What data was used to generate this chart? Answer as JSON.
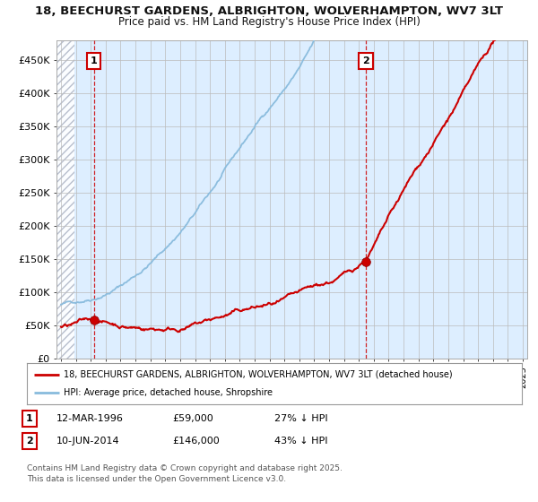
{
  "title_line1": "18, BEECHURST GARDENS, ALBRIGHTON, WOLVERHAMPTON, WV7 3LT",
  "title_line2": "Price paid vs. HM Land Registry's House Price Index (HPI)",
  "bg_color": "#ffffff",
  "plot_bg_color": "#ddeeff",
  "grid_color": "#bbbbbb",
  "red_line_color": "#cc0000",
  "blue_line_color": "#88bbdd",
  "marker_color": "#cc0000",
  "vline1_x": 1996.2,
  "vline2_x": 2014.45,
  "sale1_price": 59000,
  "sale2_price": 146000,
  "ylim": [
    0,
    480000
  ],
  "xlim": [
    1993.7,
    2025.3
  ],
  "yticks": [
    0,
    50000,
    100000,
    150000,
    200000,
    250000,
    300000,
    350000,
    400000,
    450000
  ],
  "ytick_labels": [
    "£0",
    "£50K",
    "£100K",
    "£150K",
    "£200K",
    "£250K",
    "£300K",
    "£350K",
    "£400K",
    "£450K"
  ],
  "xticks": [
    1994,
    1995,
    1996,
    1997,
    1998,
    1999,
    2000,
    2001,
    2002,
    2003,
    2004,
    2005,
    2006,
    2007,
    2008,
    2009,
    2010,
    2011,
    2012,
    2013,
    2014,
    2015,
    2016,
    2017,
    2018,
    2019,
    2020,
    2021,
    2022,
    2023,
    2024,
    2025
  ],
  "legend_label_red": "18, BEECHURST GARDENS, ALBRIGHTON, WOLVERHAMPTON, WV7 3LT (detached house)",
  "legend_label_blue": "HPI: Average price, detached house, Shropshire",
  "note1_date": "12-MAR-1996",
  "note1_price": "£59,000",
  "note1_hpi": "27% ↓ HPI",
  "note2_date": "10-JUN-2014",
  "note2_price": "£146,000",
  "note2_hpi": "43% ↓ HPI",
  "footer": "Contains HM Land Registry data © Crown copyright and database right 2025.\nThis data is licensed under the Open Government Licence v3.0."
}
